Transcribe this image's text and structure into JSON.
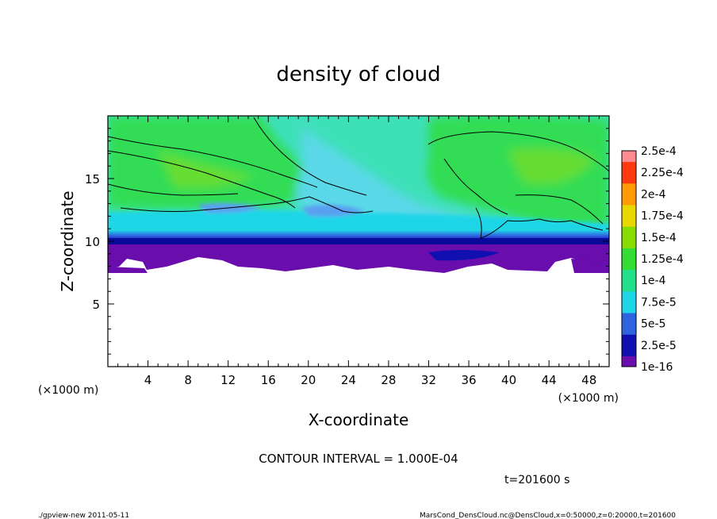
{
  "chart_data": {
    "type": "heatmap",
    "title": "density of cloud",
    "xlabel": "X-coordinate",
    "ylabel": "Z-coordinate",
    "x_unit_left": "(×1000 m)",
    "x_unit_right": "(×1000 m)",
    "xlim": [
      0,
      50
    ],
    "ylim": [
      0,
      20
    ],
    "x_ticks": [
      4,
      8,
      12,
      16,
      20,
      24,
      28,
      32,
      36,
      40,
      44,
      48
    ],
    "y_ticks": [
      5,
      10,
      15
    ],
    "colorbar": {
      "levels": [
        "1e-16",
        "2.5e-5",
        "5e-5",
        "7.5e-5",
        "1e-4",
        "1.25e-4",
        "1.5e-4",
        "1.75e-4",
        "2e-4",
        "2.25e-4",
        "2.5e-4"
      ],
      "colors": [
        "#6a0dad",
        "#1010b0",
        "#2f64e0",
        "#1fd6e8",
        "#22e08a",
        "#33dd33",
        "#88dd00",
        "#e8d800",
        "#ff9a00",
        "#ff3a10",
        "#ff8a90"
      ]
    },
    "contour_interval": "CONTOUR INTERVAL = 1.000E-04",
    "time_label": "t=201600 s"
  },
  "footer": {
    "left": "./gpview-new   2011-05-11",
    "right": "MarsCond_DensCloud.nc@DensCloud,x=0:50000,z=0:20000,t=201600"
  }
}
